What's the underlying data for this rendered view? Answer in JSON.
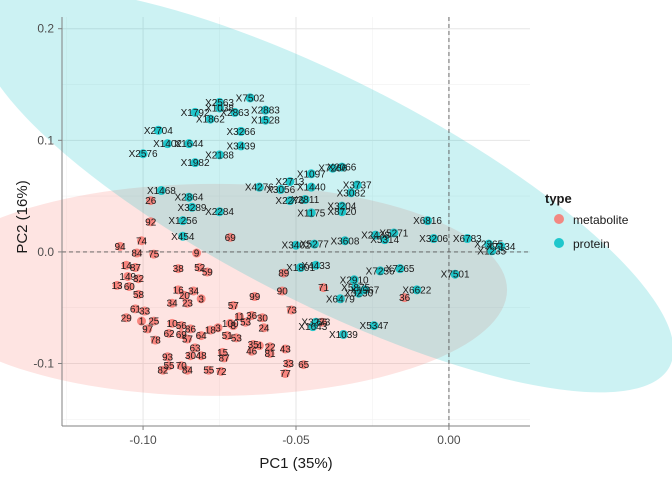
{
  "chart_data": {
    "type": "scatter",
    "title": "",
    "xlabel": "PC1 (35%)",
    "ylabel": "PC2 (16%)",
    "xlim": [
      -0.1265,
      0.0265
    ],
    "ylim": [
      -0.156,
      0.2105
    ],
    "x_ticks": [
      -0.1,
      -0.05,
      0.0
    ],
    "x_tick_labels": [
      "-0.10",
      "-0.05",
      "0.00"
    ],
    "y_ticks": [
      -0.1,
      0.0,
      0.1,
      0.2
    ],
    "y_tick_labels": [
      "-0.1",
      "0.0",
      "0.1",
      "0.2"
    ],
    "grid": true,
    "reference_lines": [
      {
        "axis": "x",
        "value": 0
      },
      {
        "axis": "y",
        "value": 0
      }
    ],
    "legend": {
      "title": "type",
      "position": "right"
    },
    "colors": {
      "metabolite": "#F8766D",
      "protein": "#00BFC4"
    },
    "ellipses": [
      {
        "series": "metabolite",
        "center": [
          -0.0765,
          -0.034
        ],
        "rx": 0.0955,
        "ry": 0.095
      },
      {
        "series": "protein",
        "center": [
          -0.0405,
          0.055
        ],
        "rx": 0.1265,
        "ry": 0.1,
        "rotation_deg": 27
      }
    ],
    "series": [
      {
        "name": "metabolite",
        "points": [
          {
            "x": -0.0975,
            "y": 0.046,
            "label": "26"
          },
          {
            "x": -0.0975,
            "y": 0.027,
            "label": "92"
          },
          {
            "x": -0.1005,
            "y": 0.01,
            "label": "74"
          },
          {
            "x": -0.1075,
            "y": 0.005,
            "label": "94"
          },
          {
            "x": -0.102,
            "y": -0.001,
            "label": "84"
          },
          {
            "x": -0.0965,
            "y": -0.002,
            "label": "75"
          },
          {
            "x": -0.1055,
            "y": -0.012,
            "label": "14"
          },
          {
            "x": -0.1025,
            "y": -0.014,
            "label": "87"
          },
          {
            "x": -0.105,
            "y": -0.022,
            "label": "149"
          },
          {
            "x": -0.1015,
            "y": -0.024,
            "label": "32"
          },
          {
            "x": -0.1085,
            "y": -0.03,
            "label": "13"
          },
          {
            "x": -0.1045,
            "y": -0.031,
            "label": "60"
          },
          {
            "x": -0.1015,
            "y": -0.038,
            "label": "58"
          },
          {
            "x": -0.1025,
            "y": -0.051,
            "label": "61"
          },
          {
            "x": -0.1055,
            "y": -0.059,
            "label": "29"
          },
          {
            "x": -0.1005,
            "y": -0.062,
            "label": "1"
          },
          {
            "x": -0.0995,
            "y": -0.053,
            "label": "33"
          },
          {
            "x": -0.0965,
            "y": -0.062,
            "label": "25"
          },
          {
            "x": -0.0985,
            "y": -0.069,
            "label": "97"
          },
          {
            "x": -0.096,
            "y": -0.079,
            "label": "78"
          },
          {
            "x": -0.0915,
            "y": -0.073,
            "label": "62"
          },
          {
            "x": -0.0875,
            "y": -0.074,
            "label": "69"
          },
          {
            "x": -0.0855,
            "y": -0.078,
            "label": "57"
          },
          {
            "x": -0.0905,
            "y": -0.064,
            "label": "10"
          },
          {
            "x": -0.0875,
            "y": -0.066,
            "label": "56"
          },
          {
            "x": -0.0845,
            "y": -0.069,
            "label": "86"
          },
          {
            "x": -0.081,
            "y": -0.075,
            "label": "64"
          },
          {
            "x": -0.083,
            "y": -0.086,
            "label": "63"
          },
          {
            "x": -0.092,
            "y": -0.094,
            "label": "93"
          },
          {
            "x": -0.0915,
            "y": -0.102,
            "label": "55"
          },
          {
            "x": -0.0935,
            "y": -0.106,
            "label": "82"
          },
          {
            "x": -0.0875,
            "y": -0.102,
            "label": "70"
          },
          {
            "x": -0.0855,
            "y": -0.106,
            "label": "84"
          },
          {
            "x": -0.0845,
            "y": -0.093,
            "label": "30"
          },
          {
            "x": -0.081,
            "y": -0.093,
            "label": "48"
          },
          {
            "x": -0.0785,
            "y": -0.106,
            "label": "55"
          },
          {
            "x": -0.0745,
            "y": -0.107,
            "label": "72"
          },
          {
            "x": -0.0735,
            "y": -0.095,
            "label": "87"
          },
          {
            "x": -0.074,
            "y": -0.09,
            "label": "15"
          },
          {
            "x": -0.0725,
            "y": -0.075,
            "label": "51"
          },
          {
            "x": -0.078,
            "y": -0.07,
            "label": "18"
          },
          {
            "x": -0.0755,
            "y": -0.068,
            "label": "3"
          },
          {
            "x": -0.0715,
            "y": -0.064,
            "label": "100"
          },
          {
            "x": -0.0695,
            "y": -0.077,
            "label": "53"
          },
          {
            "x": -0.064,
            "y": -0.083,
            "label": "35"
          },
          {
            "x": -0.062,
            "y": -0.084,
            "label": "4"
          },
          {
            "x": -0.0645,
            "y": -0.089,
            "label": "46"
          },
          {
            "x": -0.0585,
            "y": -0.091,
            "label": "81"
          },
          {
            "x": -0.0585,
            "y": -0.085,
            "label": "22"
          },
          {
            "x": -0.0535,
            "y": -0.087,
            "label": "43"
          },
          {
            "x": -0.0535,
            "y": -0.109,
            "label": "77"
          },
          {
            "x": -0.0475,
            "y": -0.101,
            "label": "65"
          },
          {
            "x": -0.0525,
            "y": -0.1,
            "label": "33"
          },
          {
            "x": -0.0605,
            "y": -0.068,
            "label": "24"
          },
          {
            "x": -0.061,
            "y": -0.059,
            "label": "30"
          },
          {
            "x": -0.0685,
            "y": -0.058,
            "label": "11"
          },
          {
            "x": -0.0705,
            "y": -0.066,
            "label": "8"
          },
          {
            "x": -0.0645,
            "y": -0.057,
            "label": "36"
          },
          {
            "x": -0.081,
            "y": -0.042,
            "label": "3"
          },
          {
            "x": -0.0855,
            "y": -0.046,
            "label": "23"
          },
          {
            "x": -0.0905,
            "y": -0.046,
            "label": "34"
          },
          {
            "x": -0.0865,
            "y": -0.039,
            "label": "20"
          },
          {
            "x": -0.0885,
            "y": -0.034,
            "label": "16"
          },
          {
            "x": -0.0835,
            "y": -0.035,
            "label": "34"
          },
          {
            "x": -0.0885,
            "y": -0.015,
            "label": "38"
          },
          {
            "x": -0.0815,
            "y": -0.014,
            "label": "52"
          },
          {
            "x": -0.079,
            "y": -0.018,
            "label": "59"
          },
          {
            "x": -0.0825,
            "y": -0.001,
            "label": "9"
          },
          {
            "x": -0.0705,
            "y": -0.048,
            "label": "57"
          },
          {
            "x": -0.0665,
            "y": -0.063,
            "label": "53"
          },
          {
            "x": -0.0635,
            "y": -0.04,
            "label": "99"
          },
          {
            "x": -0.0545,
            "y": -0.035,
            "label": "90"
          },
          {
            "x": -0.054,
            "y": -0.019,
            "label": "89"
          },
          {
            "x": -0.0515,
            "y": -0.052,
            "label": "73"
          },
          {
            "x": -0.0715,
            "y": 0.013,
            "label": "69"
          },
          {
            "x": -0.0415,
            "y": -0.063,
            "label": "66"
          },
          {
            "x": -0.041,
            "y": -0.032,
            "label": "71"
          },
          {
            "x": -0.0145,
            "y": -0.041,
            "label": "36"
          }
        ]
      },
      {
        "name": "protein",
        "points": [
          {
            "x": -0.083,
            "y": 0.125,
            "label": "X1792"
          },
          {
            "x": -0.075,
            "y": 0.134,
            "label": "X2563"
          },
          {
            "x": -0.065,
            "y": 0.138,
            "label": "X7502"
          },
          {
            "x": -0.075,
            "y": 0.129,
            "label": "X1038"
          },
          {
            "x": -0.07,
            "y": 0.125,
            "label": "X2863"
          },
          {
            "x": -0.06,
            "y": 0.127,
            "label": "X2883"
          },
          {
            "x": -0.06,
            "y": 0.118,
            "label": "X1528"
          },
          {
            "x": -0.078,
            "y": 0.119,
            "label": "X1862"
          },
          {
            "x": -0.068,
            "y": 0.108,
            "label": "X3266"
          },
          {
            "x": -0.095,
            "y": 0.109,
            "label": "X2704"
          },
          {
            "x": -0.092,
            "y": 0.097,
            "label": "X1402"
          },
          {
            "x": -0.085,
            "y": 0.097,
            "label": "X1644"
          },
          {
            "x": -0.068,
            "y": 0.095,
            "label": "X3439"
          },
          {
            "x": -0.075,
            "y": 0.087,
            "label": "X2188"
          },
          {
            "x": -0.1,
            "y": 0.088,
            "label": "X2576"
          },
          {
            "x": -0.083,
            "y": 0.08,
            "label": "X1982"
          },
          {
            "x": -0.045,
            "y": 0.07,
            "label": "X1097"
          },
          {
            "x": -0.038,
            "y": 0.075,
            "label": "X7266"
          },
          {
            "x": -0.035,
            "y": 0.076,
            "label": "X2066"
          },
          {
            "x": -0.052,
            "y": 0.063,
            "label": "X2713"
          },
          {
            "x": -0.062,
            "y": 0.058,
            "label": "X4276"
          },
          {
            "x": -0.055,
            "y": 0.056,
            "label": "X3056"
          },
          {
            "x": -0.045,
            "y": 0.058,
            "label": "X1440"
          },
          {
            "x": -0.052,
            "y": 0.046,
            "label": "X2276"
          },
          {
            "x": -0.047,
            "y": 0.047,
            "label": "X2811"
          },
          {
            "x": -0.03,
            "y": 0.06,
            "label": "X3737"
          },
          {
            "x": -0.032,
            "y": 0.053,
            "label": "X3082"
          },
          {
            "x": -0.035,
            "y": 0.041,
            "label": "X3204"
          },
          {
            "x": -0.035,
            "y": 0.036,
            "label": "X8720"
          },
          {
            "x": -0.094,
            "y": 0.055,
            "label": "X1468"
          },
          {
            "x": -0.085,
            "y": 0.049,
            "label": "X2864"
          },
          {
            "x": -0.084,
            "y": 0.04,
            "label": "X3289"
          },
          {
            "x": -0.075,
            "y": 0.036,
            "label": "X2284"
          },
          {
            "x": -0.087,
            "y": 0.028,
            "label": "X1256"
          },
          {
            "x": -0.087,
            "y": 0.014,
            "label": "X454"
          },
          {
            "x": -0.045,
            "y": 0.035,
            "label": "X1175"
          },
          {
            "x": -0.05,
            "y": 0.006,
            "label": "X3402"
          },
          {
            "x": -0.044,
            "y": 0.007,
            "label": "X5277"
          },
          {
            "x": -0.034,
            "y": 0.01,
            "label": "X3608"
          },
          {
            "x": -0.024,
            "y": 0.015,
            "label": "X2438"
          },
          {
            "x": -0.018,
            "y": 0.017,
            "label": "X5271"
          },
          {
            "x": -0.021,
            "y": 0.011,
            "label": "X5314"
          },
          {
            "x": -0.007,
            "y": 0.028,
            "label": "X6816"
          },
          {
            "x": -0.005,
            "y": 0.012,
            "label": "X3206"
          },
          {
            "x": 0.006,
            "y": 0.012,
            "label": "X6783"
          },
          {
            "x": 0.013,
            "y": 0.007,
            "label": "X2365"
          },
          {
            "x": 0.017,
            "y": 0.005,
            "label": "X7134"
          },
          {
            "x": 0.014,
            "y": 0.001,
            "label": "X1235"
          },
          {
            "x": -0.0435,
            "y": -0.012,
            "label": "X4433"
          },
          {
            "x": -0.0485,
            "y": -0.014,
            "label": "X1801"
          },
          {
            "x": -0.016,
            "y": -0.015,
            "label": "X7265"
          },
          {
            "x": -0.0225,
            "y": -0.017,
            "label": "X7256"
          },
          {
            "x": 0.002,
            "y": -0.02,
            "label": "X7501"
          },
          {
            "x": -0.031,
            "y": -0.025,
            "label": "X2910"
          },
          {
            "x": -0.0305,
            "y": -0.032,
            "label": "X5875"
          },
          {
            "x": -0.0275,
            "y": -0.034,
            "label": "X1967"
          },
          {
            "x": -0.0295,
            "y": -0.037,
            "label": "X3230"
          },
          {
            "x": -0.0355,
            "y": -0.042,
            "label": "X6479"
          },
          {
            "x": -0.0105,
            "y": -0.034,
            "label": "X6622"
          },
          {
            "x": -0.0345,
            "y": -0.074,
            "label": "X1039"
          },
          {
            "x": -0.0245,
            "y": -0.066,
            "label": "X5347"
          },
          {
            "x": -0.0445,
            "y": -0.067,
            "label": "X1643"
          },
          {
            "x": -0.0435,
            "y": -0.063,
            "label": "X3273"
          }
        ]
      }
    ]
  },
  "legend_labels": {
    "title": "type",
    "items": [
      "metabolite",
      "protein"
    ]
  }
}
